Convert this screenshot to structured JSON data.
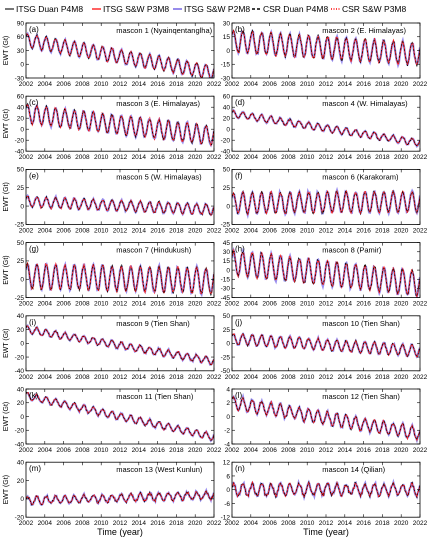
{
  "legend": [
    {
      "label": "ITSG Duan P4M8",
      "color": "#555555",
      "dash": "solid"
    },
    {
      "label": "ITSG S&W P3M8",
      "color": "#ff3b3b",
      "dash": "solid"
    },
    {
      "label": "ITSG S&W P2M8",
      "color": "#7f6fe6",
      "dash": "solid"
    },
    {
      "label": "CSR Duan P4M8",
      "color": "#000000",
      "dash": "dash"
    },
    {
      "label": "CSR S&W P3M8",
      "color": "#ff0000",
      "dash": "dot"
    }
  ],
  "x_ticks": [
    "2002",
    "2004",
    "2006",
    "2008",
    "2010",
    "2012",
    "2014",
    "2016",
    "2018",
    "2020",
    "2022"
  ],
  "xlabel": "Time (year)",
  "ylabel": "EWT (Gt)",
  "chart_data": [
    {
      "type": "line",
      "letter": "(a)",
      "title": "mascon 1 (Nyainqentanglha)",
      "yticks": [
        -30,
        0,
        30,
        60,
        90
      ],
      "ylim": [
        -30,
        90
      ],
      "x": [
        2002,
        2022
      ],
      "grid": false,
      "series": [
        {
          "name": "ITSG Duan P4M8",
          "trend": [
            52,
            -18
          ],
          "amplitude": 15,
          "noise": 2.5
        }
      ]
    },
    {
      "type": "line",
      "letter": "(b)",
      "title": "mascon 2 (E. Himalayas)",
      "yticks": [
        -30,
        -15,
        0,
        15,
        30
      ],
      "ylim": [
        -30,
        30
      ],
      "x": [
        2002,
        2022
      ],
      "grid": false,
      "series": [
        {
          "name": "ITSG Duan P4M8",
          "trend": [
            10,
            -4
          ],
          "amplitude": 12,
          "noise": 2
        }
      ]
    },
    {
      "type": "line",
      "letter": "(c)",
      "title": "mascon 3 (E. Himalayas)",
      "yticks": [
        -40,
        -20,
        0,
        20,
        40,
        60
      ],
      "ylim": [
        -40,
        60
      ],
      "x": [
        2002,
        2022
      ],
      "grid": false,
      "series": [
        {
          "name": "ITSG Duan P4M8",
          "trend": [
            28,
            -12
          ],
          "amplitude": 17,
          "noise": 2.5
        }
      ]
    },
    {
      "type": "line",
      "letter": "(d)",
      "title": "mascon 4 (W. Himalayas)",
      "yticks": [
        -40,
        -20,
        0,
        20,
        40,
        60
      ],
      "ylim": [
        -40,
        60
      ],
      "x": [
        2002,
        2022
      ],
      "grid": false,
      "series": [
        {
          "name": "ITSG Duan P4M8",
          "trend": [
            28,
            -25
          ],
          "amplitude": 6,
          "noise": 2
        }
      ]
    },
    {
      "type": "line",
      "letter": "(e)",
      "title": "mascon 5 (W. Himalayas)",
      "yticks": [
        -25,
        0,
        25,
        50
      ],
      "ylim": [
        -25,
        50
      ],
      "x": [
        2002,
        2022
      ],
      "grid": false,
      "series": [
        {
          "name": "ITSG Duan P4M8",
          "trend": [
            6,
            -5
          ],
          "amplitude": 7,
          "noise": 2
        }
      ]
    },
    {
      "type": "line",
      "letter": "(f)",
      "title": "mascon 6 (Karakoram)",
      "yticks": [
        -25,
        0,
        25,
        50
      ],
      "ylim": [
        -25,
        50
      ],
      "x": [
        2002,
        2022
      ],
      "grid": false,
      "series": [
        {
          "name": "ITSG Duan P4M8",
          "trend": [
            4,
            6
          ],
          "amplitude": 14,
          "noise": 2.5
        }
      ]
    },
    {
      "type": "line",
      "letter": "(g)",
      "title": "mascon 7 (Hindukush)",
      "yticks": [
        -25,
        0,
        25,
        50
      ],
      "ylim": [
        -25,
        50
      ],
      "x": [
        2002,
        2022
      ],
      "grid": false,
      "series": [
        {
          "name": "ITSG Duan P4M8",
          "trend": [
            4,
            -2
          ],
          "amplitude": 17,
          "noise": 2.5
        }
      ]
    },
    {
      "type": "line",
      "letter": "(h)",
      "title": "mascon 8 (Pamir)",
      "yticks": [
        -45,
        -30,
        -15,
        0,
        15,
        30,
        45
      ],
      "ylim": [
        -45,
        45
      ],
      "x": [
        2002,
        2022
      ],
      "grid": false,
      "series": [
        {
          "name": "ITSG Duan P4M8",
          "trend": [
            12,
            -22
          ],
          "amplitude": 20,
          "noise": 3
        }
      ]
    },
    {
      "type": "line",
      "letter": "(i)",
      "title": "mascon 9 (Tien Shan)",
      "yticks": [
        -40,
        -20,
        0,
        20,
        40
      ],
      "ylim": [
        -40,
        40
      ],
      "x": [
        2002,
        2022
      ],
      "grid": false,
      "series": [
        {
          "name": "ITSG Duan P4M8",
          "trend": [
            20,
            -26
          ],
          "amplitude": 5,
          "noise": 2
        }
      ]
    },
    {
      "type": "line",
      "letter": "(j)",
      "title": "mascon 10 (Tien Shan)",
      "yticks": [
        -50,
        -25,
        0,
        25,
        50
      ],
      "ylim": [
        -50,
        50
      ],
      "x": [
        2002,
        2022
      ],
      "grid": false,
      "series": [
        {
          "name": "ITSG Duan P4M8",
          "trend": [
            8,
            -14
          ],
          "amplitude": 10,
          "noise": 2.5
        }
      ]
    },
    {
      "type": "line",
      "letter": "(k)",
      "title": "mascon 11 (Tien Shan)",
      "yticks": [
        -40,
        -20,
        0,
        20,
        40
      ],
      "ylim": [
        -40,
        40
      ],
      "x": [
        2002,
        2022
      ],
      "grid": false,
      "series": [
        {
          "name": "ITSG Duan P4M8",
          "trend": [
            30,
            -30
          ],
          "amplitude": 5,
          "noise": 2
        }
      ]
    },
    {
      "type": "line",
      "letter": "(l)",
      "title": "mascon 12 (Tien Shan)",
      "yticks": [
        -4,
        -2,
        0,
        2,
        4
      ],
      "ylim": [
        -4,
        4
      ],
      "x": [
        2002,
        2022
      ],
      "grid": false,
      "series": [
        {
          "name": "ITSG Duan P4M8",
          "trend": [
            2,
            -2.5
          ],
          "amplitude": 0.9,
          "noise": 0.3
        }
      ]
    },
    {
      "type": "line",
      "letter": "(m)",
      "title": "mascon 13 (West Kunlun)",
      "yticks": [
        -20,
        0,
        20,
        40
      ],
      "ylim": [
        -20,
        40
      ],
      "x": [
        2002,
        2022
      ],
      "grid": false,
      "series": [
        {
          "name": "ITSG Duan P4M8",
          "trend": [
            -2,
            4
          ],
          "amplitude": 4,
          "noise": 2.5
        }
      ]
    },
    {
      "type": "line",
      "letter": "(n)",
      "title": "mascon 14 (Qilian)",
      "yticks": [
        -12,
        -6,
        0,
        6,
        12
      ],
      "ylim": [
        -12,
        12
      ],
      "x": [
        2002,
        2022
      ],
      "grid": false,
      "series": [
        {
          "name": "ITSG Duan P4M8",
          "trend": [
            0,
            0
          ],
          "amplitude": 2.5,
          "noise": 1.5
        }
      ]
    }
  ]
}
